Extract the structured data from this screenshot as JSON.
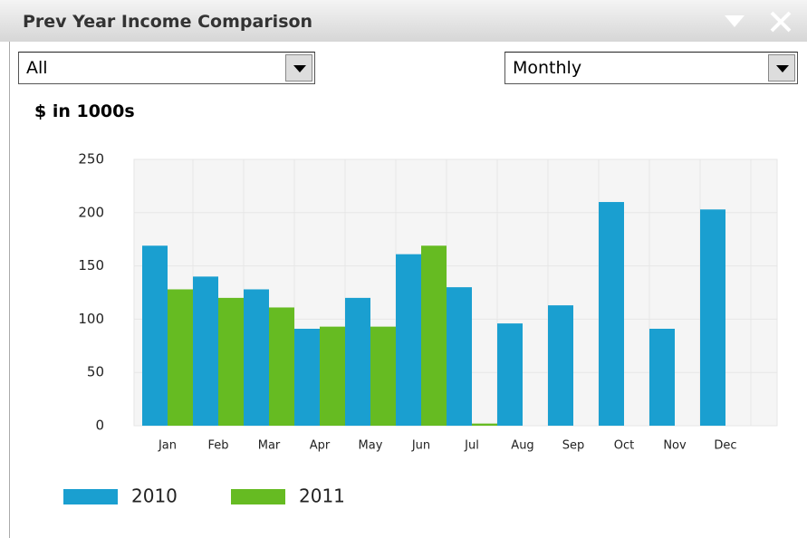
{
  "header": {
    "title": "Prev Year Income Comparison"
  },
  "filters": {
    "left": "All",
    "right": "Monthly"
  },
  "chart_data": {
    "type": "bar",
    "title": "$ in 1000s",
    "categories": [
      "Jan",
      "Feb",
      "Mar",
      "Apr",
      "May",
      "Jun",
      "Jul",
      "Aug",
      "Sep",
      "Oct",
      "Nov",
      "Dec"
    ],
    "series": [
      {
        "name": "2010",
        "color": "#1a9fd0",
        "values": [
          169,
          140,
          128,
          91,
          120,
          161,
          130,
          96,
          113,
          210,
          91,
          203
        ]
      },
      {
        "name": "2011",
        "color": "#66bb22",
        "values": [
          128,
          120,
          111,
          93,
          93,
          169,
          2,
          null,
          null,
          null,
          null,
          null
        ]
      }
    ],
    "ylim": [
      0,
      250
    ],
    "yticks": [
      0,
      50,
      100,
      150,
      200,
      250
    ],
    "grid": true,
    "legend": "bottom-left"
  }
}
